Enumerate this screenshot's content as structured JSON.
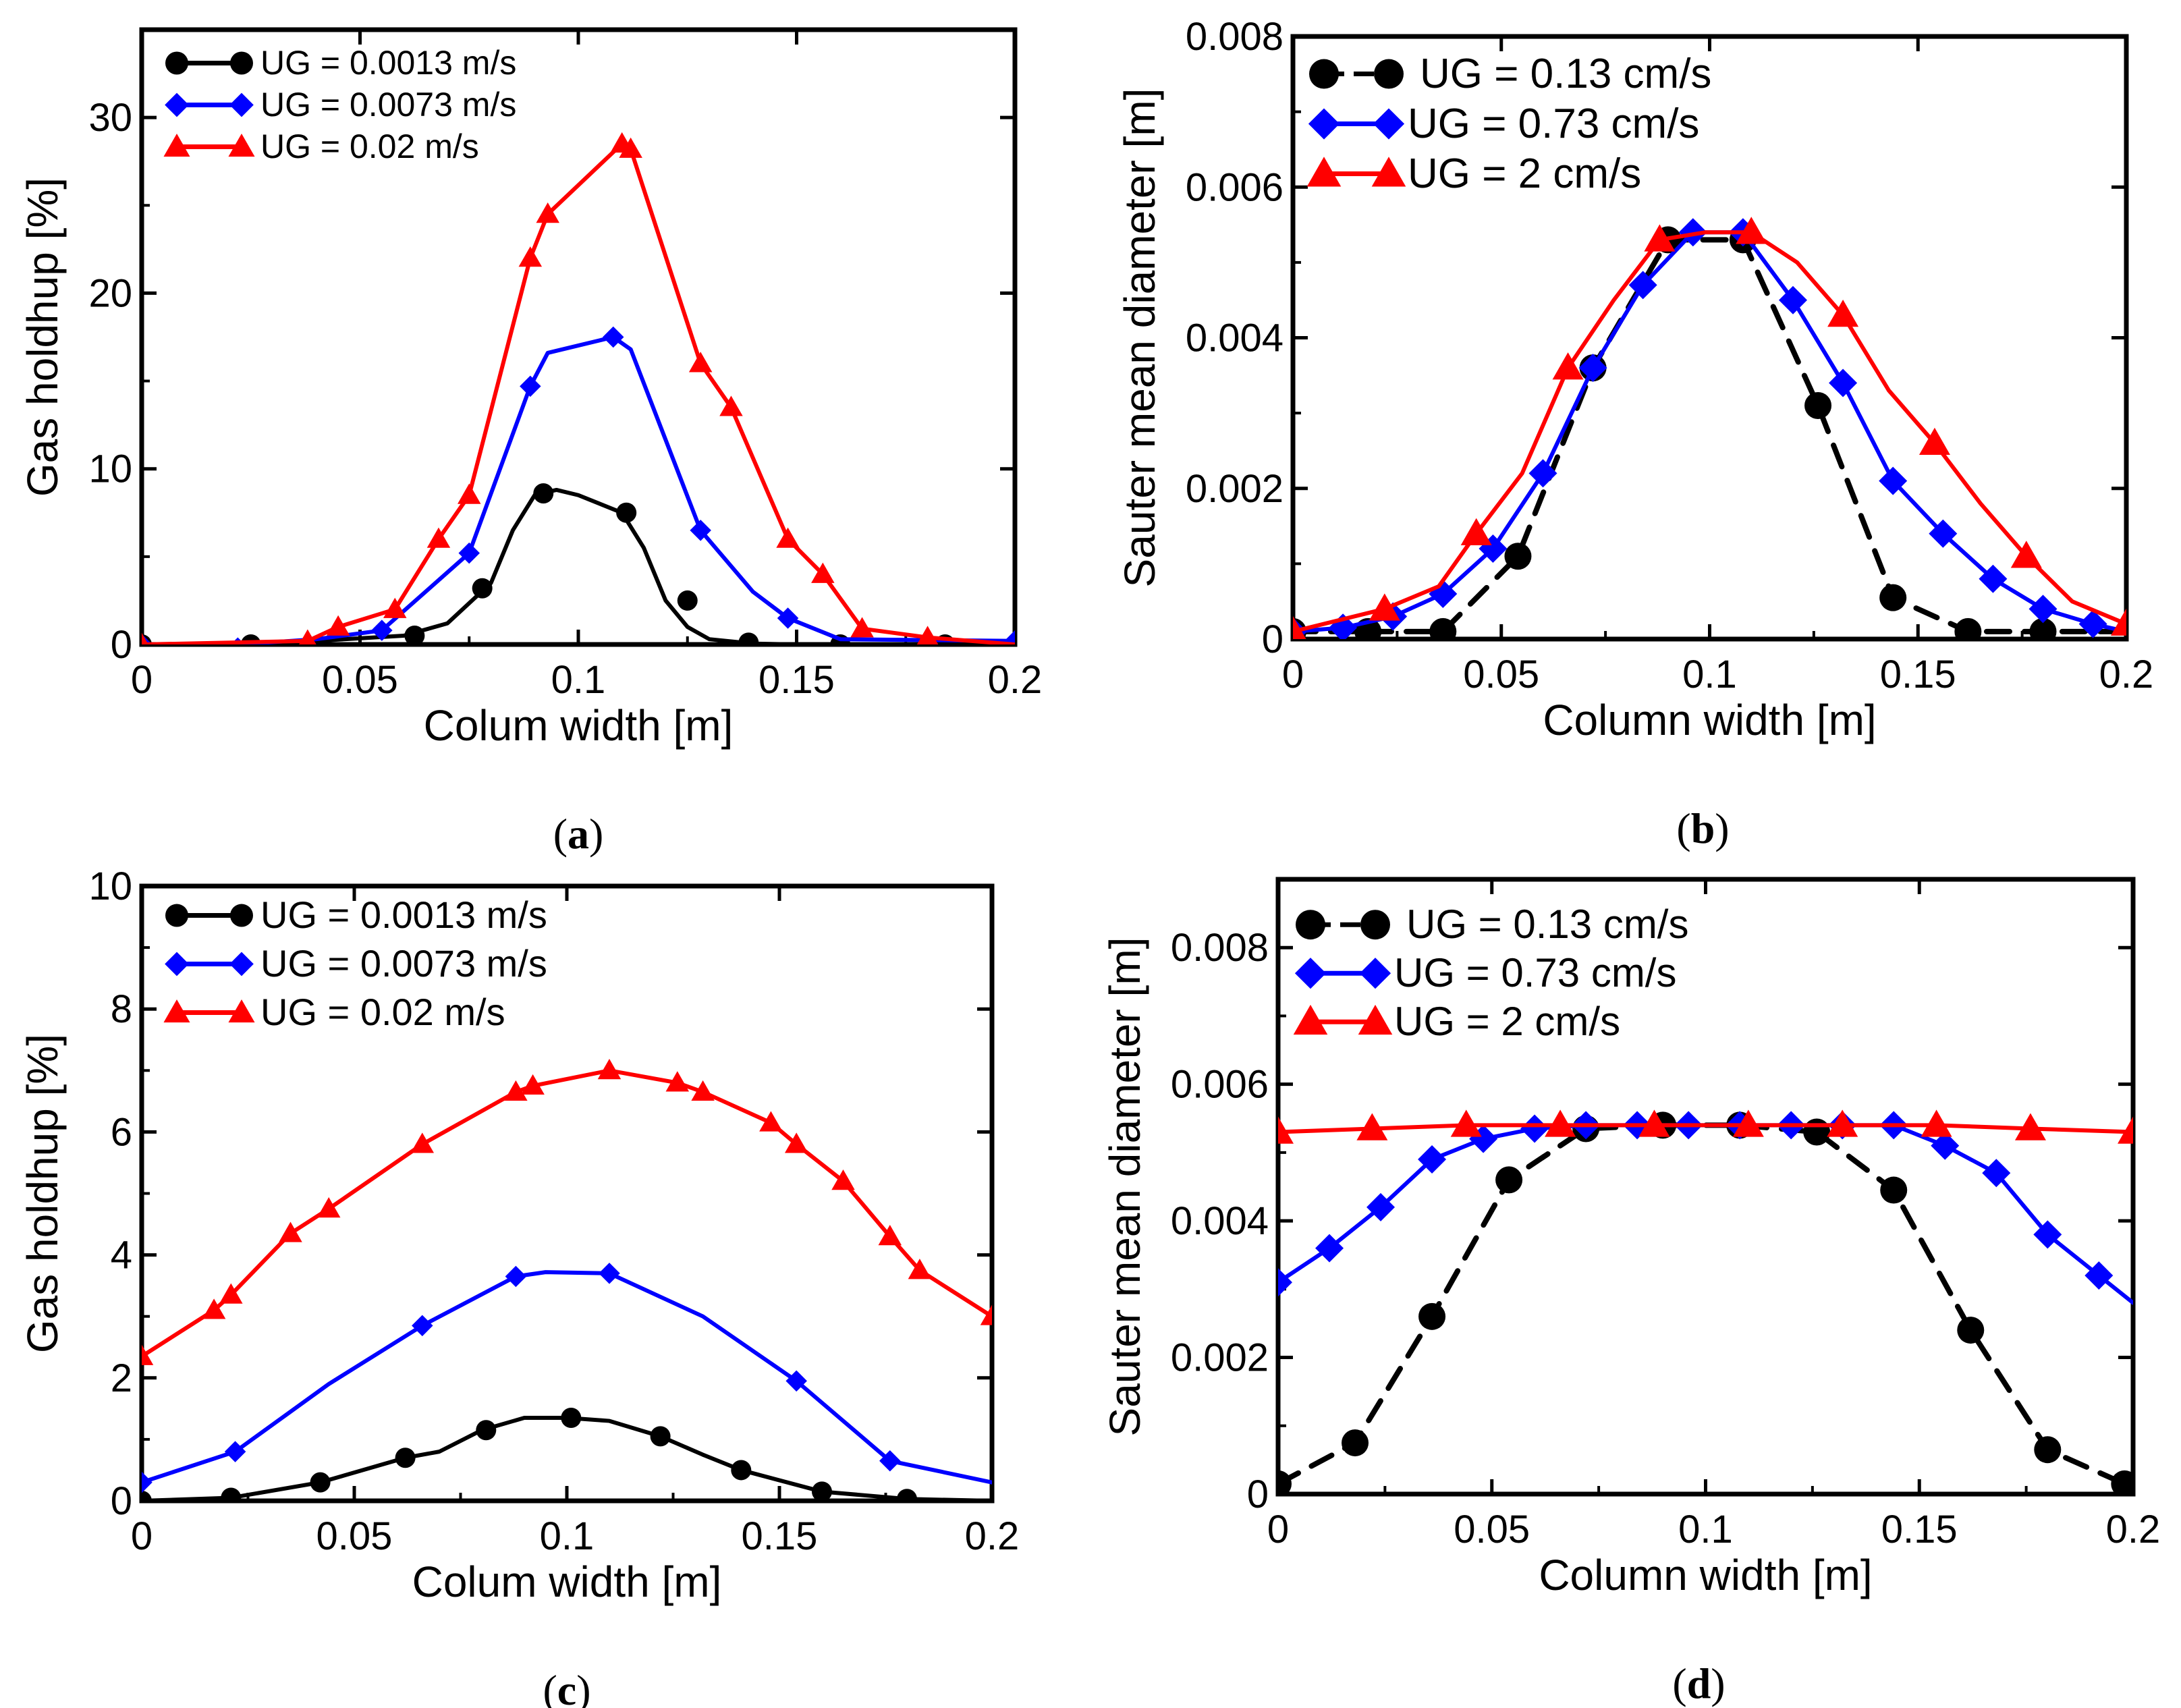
{
  "chart_data": [
    {
      "id": "a",
      "type": "line",
      "caption": {
        "open": "(",
        "letter": "a",
        "close": ")"
      },
      "xlabel": "Colum width [m]",
      "ylabel": "Gas holdhup [%]",
      "xlim": [
        0,
        0.2
      ],
      "ylim": [
        0,
        35
      ],
      "xticks": [
        0,
        0.05,
        0.1,
        0.15,
        0.2
      ],
      "xtick_labels": [
        "0",
        "0.05",
        "0.1",
        "0.15",
        "0.2"
      ],
      "yticks": [
        0,
        10,
        20,
        30
      ],
      "ytick_labels": [
        "0",
        "10",
        "20",
        "30"
      ],
      "legend_position": "top-left",
      "series": [
        {
          "name": "UG = 0.0013 m/s",
          "color": "#000000",
          "marker": "circle",
          "dashed": false,
          "line_x": [
            0,
            0.02,
            0.04,
            0.06,
            0.07,
            0.08,
            0.085,
            0.09,
            0.095,
            0.1,
            0.11,
            0.115,
            0.12,
            0.125,
            0.13,
            0.14,
            0.15,
            0.2
          ],
          "line_y": [
            0,
            0,
            0.2,
            0.5,
            1.2,
            3.5,
            6.5,
            8.5,
            8.8,
            8.5,
            7.5,
            5.5,
            2.5,
            1,
            0.3,
            0.05,
            0,
            0
          ],
          "marker_x": [
            0,
            0.025,
            0.0625,
            0.078,
            0.092,
            0.111,
            0.125,
            0.139,
            0.16,
            0.184
          ],
          "marker_y": [
            0,
            0,
            0.5,
            3.2,
            8.6,
            7.5,
            2.5,
            0.1,
            0,
            0
          ]
        },
        {
          "name": "UG = 0.0073 m/s",
          "color": "#0000ff",
          "marker": "diamond",
          "dashed": false,
          "line_x": [
            0,
            0.022,
            0.04,
            0.055,
            0.075,
            0.089,
            0.093,
            0.108,
            0.112,
            0.128,
            0.14,
            0.148,
            0.16,
            0.2
          ],
          "line_y": [
            0,
            0,
            0.3,
            0.8,
            5.2,
            14.7,
            16.6,
            17.5,
            16.8,
            6.5,
            3,
            1.5,
            0.3,
            0.2
          ],
          "marker_x": [
            0,
            0.022,
            0.055,
            0.075,
            0.089,
            0.108,
            0.128,
            0.148,
            0.2
          ],
          "marker_y": [
            0,
            -0.2,
            0.8,
            5.2,
            14.7,
            17.5,
            6.5,
            1.5,
            0.2
          ]
        },
        {
          "name": "UG = 0.02 m/s",
          "color": "#ff0000",
          "marker": "triangle",
          "dashed": false,
          "line_x": [
            0,
            0.038,
            0.045,
            0.058,
            0.068,
            0.075,
            0.089,
            0.093,
            0.11,
            0.112,
            0.128,
            0.135,
            0.148,
            0.156,
            0.165,
            0.18,
            0.2
          ],
          "line_y": [
            0,
            0.2,
            1,
            2,
            6,
            8.5,
            22,
            24.5,
            28.5,
            28.2,
            16,
            13.5,
            6,
            4,
            0.9,
            0.4,
            0
          ],
          "marker_x": [
            0,
            0.038,
            0.045,
            0.058,
            0.068,
            0.075,
            0.089,
            0.093,
            0.11,
            0.112,
            0.128,
            0.135,
            0.148,
            0.156,
            0.165,
            0.18
          ],
          "marker_y": [
            0,
            0.2,
            1,
            2,
            6,
            8.5,
            22,
            24.5,
            28.5,
            28.2,
            16,
            13.5,
            6,
            4,
            0.9,
            0.4
          ]
        }
      ]
    },
    {
      "id": "b",
      "type": "line",
      "caption": {
        "open": "(",
        "letter": "b",
        "close": ")"
      },
      "xlabel": "Column width [m]",
      "ylabel": "Sauter mean diameter [m]",
      "xlim": [
        0,
        0.2
      ],
      "ylim": [
        0,
        0.008
      ],
      "xticks": [
        0,
        0.05,
        0.1,
        0.15,
        0.2
      ],
      "xtick_labels": [
        "0",
        "0.05",
        "0.1",
        "0.15",
        "0.2"
      ],
      "yticks": [
        0,
        0.002,
        0.004,
        0.006,
        0.008
      ],
      "ytick_labels": [
        "0",
        "0.002",
        "0.004",
        "0.006",
        "0.008"
      ],
      "legend_position": "top-left",
      "series": [
        {
          "name": "UG = 0.13 cm/s",
          "color": "#000000",
          "marker": "circle",
          "dashed": true,
          "line_x": [
            0,
            0.018,
            0.036,
            0.054,
            0.072,
            0.09,
            0.108,
            0.126,
            0.144,
            0.162,
            0.18,
            0.2
          ],
          "line_y": [
            0.0001,
            0.0001,
            0.0001,
            0.0011,
            0.0036,
            0.0053,
            0.0053,
            0.0031,
            0.00055,
            0.0001,
            0.0001,
            0.0001
          ],
          "marker_x": [
            0,
            0.018,
            0.036,
            0.054,
            0.072,
            0.09,
            0.108,
            0.126,
            0.144,
            0.162,
            0.18
          ],
          "marker_y": [
            0.0001,
            0.0001,
            0.0001,
            0.0011,
            0.0036,
            0.0053,
            0.0053,
            0.0031,
            0.00055,
            0.0001,
            0.0001
          ]
        },
        {
          "name": "UG = 0.73 cm/s",
          "color": "#0000ff",
          "marker": "diamond",
          "dashed": false,
          "line_x": [
            0,
            0.012,
            0.024,
            0.036,
            0.048,
            0.06,
            0.072,
            0.084,
            0.096,
            0.108,
            0.12,
            0.132,
            0.144,
            0.156,
            0.168,
            0.18,
            0.192,
            0.2
          ],
          "line_y": [
            0.0001,
            0.00015,
            0.0003,
            0.0006,
            0.0012,
            0.0022,
            0.0036,
            0.0047,
            0.0054,
            0.0054,
            0.0045,
            0.0034,
            0.0021,
            0.0014,
            0.0008,
            0.0004,
            0.0002,
            0.0001
          ],
          "marker_x": [
            0,
            0.012,
            0.024,
            0.036,
            0.048,
            0.06,
            0.072,
            0.084,
            0.096,
            0.108,
            0.12,
            0.132,
            0.144,
            0.156,
            0.168,
            0.18,
            0.192
          ],
          "marker_y": [
            0.0001,
            0.00015,
            0.0003,
            0.0006,
            0.0012,
            0.0022,
            0.0036,
            0.0047,
            0.0054,
            0.0054,
            0.0045,
            0.0034,
            0.0021,
            0.0014,
            0.0008,
            0.0004,
            0.0002
          ]
        },
        {
          "name": "UG = 2 cm/s",
          "color": "#ff0000",
          "marker": "triangle",
          "dashed": false,
          "line_x": [
            0,
            0.022,
            0.035,
            0.044,
            0.055,
            0.066,
            0.077,
            0.088,
            0.099,
            0.11,
            0.121,
            0.132,
            0.143,
            0.154,
            0.165,
            0.176,
            0.187,
            0.2
          ],
          "line_y": [
            0.0001,
            0.0004,
            0.0007,
            0.0014,
            0.0022,
            0.0036,
            0.0045,
            0.0053,
            0.0054,
            0.0054,
            0.005,
            0.0043,
            0.0033,
            0.0026,
            0.0018,
            0.0011,
            0.0005,
            0.0002
          ],
          "marker_x": [
            0,
            0.022,
            0.044,
            0.066,
            0.088,
            0.11,
            0.132,
            0.154,
            0.176,
            0.2
          ],
          "marker_y": [
            0.0001,
            0.0004,
            0.0014,
            0.0036,
            0.0053,
            0.0054,
            0.0043,
            0.0026,
            0.0011,
            0.0002
          ]
        }
      ]
    },
    {
      "id": "c",
      "type": "line",
      "caption": {
        "open": "(",
        "letter": "c",
        "close": ")"
      },
      "xlabel": "Colum width [m]",
      "ylabel": "Gas holdhup [%]",
      "xlim": [
        0,
        0.2
      ],
      "ylim": [
        0,
        10
      ],
      "xticks": [
        0,
        0.05,
        0.1,
        0.15,
        0.2
      ],
      "xtick_labels": [
        "0",
        "0.05",
        "0.1",
        "0.15",
        "0.2"
      ],
      "yticks": [
        0,
        2,
        4,
        6,
        8,
        10
      ],
      "ytick_labels": [
        "0",
        "2",
        "4",
        "6",
        "8",
        "10"
      ],
      "legend_position": "top-left",
      "series": [
        {
          "name": "UG = 0.0013 m/s",
          "color": "#000000",
          "marker": "circle",
          "dashed": false,
          "line_x": [
            0,
            0.021,
            0.042,
            0.062,
            0.07,
            0.08,
            0.09,
            0.1,
            0.11,
            0.122,
            0.132,
            0.141,
            0.16,
            0.18,
            0.2
          ],
          "line_y": [
            0,
            0.05,
            0.3,
            0.7,
            0.8,
            1.15,
            1.35,
            1.35,
            1.3,
            1.05,
            0.75,
            0.5,
            0.15,
            0.03,
            0
          ],
          "marker_x": [
            0,
            0.021,
            0.042,
            0.062,
            0.081,
            0.101,
            0.122,
            0.141,
            0.16,
            0.18
          ],
          "marker_y": [
            0,
            0.05,
            0.3,
            0.7,
            1.15,
            1.35,
            1.05,
            0.5,
            0.15,
            0.03
          ]
        },
        {
          "name": "UG = 0.0073 m/s",
          "color": "#0000ff",
          "marker": "diamond",
          "dashed": false,
          "line_x": [
            0,
            0.022,
            0.044,
            0.066,
            0.088,
            0.095,
            0.11,
            0.132,
            0.154,
            0.176,
            0.2
          ],
          "line_y": [
            0.3,
            0.8,
            1.9,
            2.85,
            3.65,
            3.72,
            3.7,
            3,
            1.95,
            0.65,
            0.3
          ],
          "marker_x": [
            0,
            0.022,
            0.066,
            0.088,
            0.11,
            0.154,
            0.176
          ],
          "marker_y": [
            0.3,
            0.8,
            2.85,
            3.65,
            3.7,
            1.95,
            0.65
          ]
        },
        {
          "name": "UG = 0.02 m/s",
          "color": "#ff0000",
          "marker": "triangle",
          "dashed": false,
          "line_x": [
            0,
            0.017,
            0.021,
            0.035,
            0.044,
            0.066,
            0.088,
            0.092,
            0.11,
            0.126,
            0.132,
            0.148,
            0.154,
            0.165,
            0.176,
            0.183,
            0.2
          ],
          "line_y": [
            2.35,
            3.1,
            3.35,
            4.35,
            4.75,
            5.8,
            6.65,
            6.75,
            7,
            6.8,
            6.65,
            6.15,
            5.8,
            5.2,
            4.3,
            3.75,
            3
          ],
          "marker_x": [
            0,
            0.017,
            0.021,
            0.035,
            0.044,
            0.066,
            0.088,
            0.092,
            0.11,
            0.126,
            0.132,
            0.148,
            0.154,
            0.165,
            0.176,
            0.183,
            0.2
          ],
          "marker_y": [
            2.35,
            3.1,
            3.35,
            4.35,
            4.75,
            5.8,
            6.65,
            6.75,
            7,
            6.8,
            6.65,
            6.15,
            5.8,
            5.2,
            4.3,
            3.75,
            3
          ]
        }
      ]
    },
    {
      "id": "d",
      "type": "line",
      "caption": {
        "open": "(",
        "letter": "d",
        "close": ")"
      },
      "xlabel": "Column width [m]",
      "ylabel": "Sauter mean diameter [m]",
      "xlim": [
        0,
        0.2
      ],
      "ylim": [
        0,
        0.009
      ],
      "xticks": [
        0,
        0.05,
        0.1,
        0.15,
        0.2
      ],
      "xtick_labels": [
        "0",
        "0.05",
        "0.1",
        "0.15",
        "0.2"
      ],
      "yticks": [
        0,
        0.002,
        0.004,
        0.006,
        0.008
      ],
      "ytick_labels": [
        "0",
        "0.002",
        "0.004",
        "0.006",
        "0.008"
      ],
      "legend_position": "top-left",
      "series": [
        {
          "name": "UG = 0.13 cm/s",
          "color": "#000000",
          "marker": "circle",
          "dashed": true,
          "line_x": [
            0,
            0.018,
            0.036,
            0.054,
            0.072,
            0.09,
            0.108,
            0.126,
            0.144,
            0.162,
            0.18,
            0.198
          ],
          "line_y": [
            0.00015,
            0.00075,
            0.0026,
            0.0046,
            0.00535,
            0.0054,
            0.0054,
            0.0053,
            0.00445,
            0.0024,
            0.00065,
            0.00015
          ],
          "marker_x": [
            0,
            0.018,
            0.036,
            0.054,
            0.072,
            0.09,
            0.108,
            0.126,
            0.144,
            0.162,
            0.18,
            0.198
          ],
          "marker_y": [
            0.00015,
            0.00075,
            0.0026,
            0.0046,
            0.00535,
            0.0054,
            0.0054,
            0.0053,
            0.00445,
            0.0024,
            0.00065,
            0.00015
          ]
        },
        {
          "name": "UG = 0.73 cm/s",
          "color": "#0000ff",
          "marker": "diamond",
          "dashed": false,
          "line_x": [
            0,
            0.012,
            0.024,
            0.036,
            0.048,
            0.06,
            0.072,
            0.084,
            0.096,
            0.108,
            0.12,
            0.132,
            0.144,
            0.156,
            0.168,
            0.18,
            0.192,
            0.2
          ],
          "line_y": [
            0.0031,
            0.0036,
            0.0042,
            0.0049,
            0.0052,
            0.00535,
            0.0054,
            0.0054,
            0.0054,
            0.0054,
            0.0054,
            0.0054,
            0.0054,
            0.0051,
            0.0047,
            0.0038,
            0.0032,
            0.0028
          ],
          "marker_x": [
            0,
            0.012,
            0.024,
            0.036,
            0.048,
            0.06,
            0.072,
            0.084,
            0.096,
            0.108,
            0.12,
            0.132,
            0.144,
            0.156,
            0.168,
            0.18,
            0.192
          ],
          "marker_y": [
            0.0031,
            0.0036,
            0.0042,
            0.0049,
            0.0052,
            0.00535,
            0.0054,
            0.0054,
            0.0054,
            0.0054,
            0.0054,
            0.0054,
            0.0054,
            0.0051,
            0.0047,
            0.0038,
            0.0032
          ]
        },
        {
          "name": "UG = 2 cm/s",
          "color": "#ff0000",
          "marker": "triangle",
          "dashed": false,
          "line_x": [
            0,
            0.022,
            0.044,
            0.066,
            0.088,
            0.11,
            0.132,
            0.154,
            0.176,
            0.2
          ],
          "line_y": [
            0.0053,
            0.00535,
            0.0054,
            0.0054,
            0.0054,
            0.0054,
            0.0054,
            0.0054,
            0.00535,
            0.0053
          ],
          "marker_x": [
            0,
            0.022,
            0.044,
            0.066,
            0.088,
            0.11,
            0.132,
            0.154,
            0.176,
            0.2
          ],
          "marker_y": [
            0.0053,
            0.00535,
            0.0054,
            0.0054,
            0.0054,
            0.0054,
            0.0054,
            0.0054,
            0.00535,
            0.0053
          ]
        }
      ]
    }
  ]
}
